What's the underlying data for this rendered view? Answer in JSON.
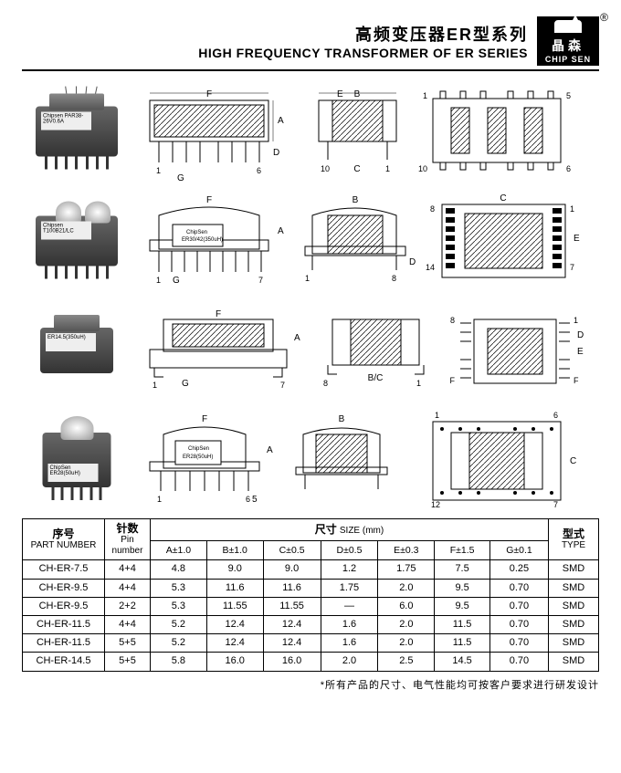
{
  "header": {
    "title_cn": "高频变压器ER型系列",
    "title_en": "HIGH FREQUENCY TRANSFORMER OF ER SERIES",
    "logo_cn": "晶森",
    "logo_en": "CHIP SEN",
    "reg": "®"
  },
  "photo_labels": [
    "Chipsen PAR38-26V0.6A",
    "Chipsen T100B21/LC",
    "ER14.5(350uH)",
    "ChipSen ER28(50uH)"
  ],
  "diagram_letters": [
    "A",
    "B",
    "C",
    "D",
    "E",
    "F",
    "G"
  ],
  "table": {
    "headers": {
      "part": {
        "cn": "序号",
        "en": "PART NUMBER"
      },
      "pin": {
        "cn": "针数",
        "en": "Pin number"
      },
      "size": {
        "cn": "尺寸",
        "en": "SIZE (mm)"
      },
      "type": {
        "cn": "型式",
        "en": "TYPE"
      },
      "cols": [
        "A±1.0",
        "B±1.0",
        "C±0.5",
        "D±0.5",
        "E±0.3",
        "F±1.5",
        "G±0.1"
      ]
    },
    "rows": [
      {
        "part": "CH-ER-7.5",
        "pin": "4+4",
        "vals": [
          "4.8",
          "9.0",
          "9.0",
          "1.2",
          "1.75",
          "7.5",
          "0.25"
        ],
        "type": "SMD"
      },
      {
        "part": "CH-ER-9.5",
        "pin": "4+4",
        "vals": [
          "5.3",
          "11.6",
          "11.6",
          "1.75",
          "2.0",
          "9.5",
          "0.70"
        ],
        "type": "SMD"
      },
      {
        "part": "CH-ER-9.5",
        "pin": "2+2",
        "vals": [
          "5.3",
          "11.55",
          "11.55",
          "—",
          "6.0",
          "9.5",
          "0.70"
        ],
        "type": "SMD"
      },
      {
        "part": "CH-ER-11.5",
        "pin": "4+4",
        "vals": [
          "5.2",
          "12.4",
          "12.4",
          "1.6",
          "2.0",
          "11.5",
          "0.70"
        ],
        "type": "SMD"
      },
      {
        "part": "CH-ER-11.5",
        "pin": "5+5",
        "vals": [
          "5.2",
          "12.4",
          "12.4",
          "1.6",
          "2.0",
          "11.5",
          "0.70"
        ],
        "type": "SMD"
      },
      {
        "part": "CH-ER-14.5",
        "pin": "5+5",
        "vals": [
          "5.8",
          "16.0",
          "16.0",
          "2.0",
          "2.5",
          "14.5",
          "0.70"
        ],
        "type": "SMD"
      }
    ]
  },
  "footnote": "*所有产品的尺寸、电气性能均可按客户要求进行研发设计"
}
